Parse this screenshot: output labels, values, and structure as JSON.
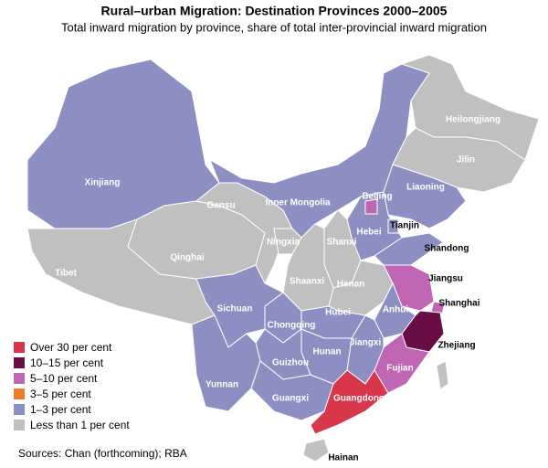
{
  "title": "Rural–urban Migration: Destination Provinces 2000–2005",
  "subtitle": "Total inward migration by province, share of total inter-provincial inward migration",
  "legend": [
    {
      "label": "Over 30 per cent",
      "color": "#d8374b"
    },
    {
      "label": "10–15 per cent",
      "color": "#6b0d45"
    },
    {
      "label": "5–10 per cent",
      "color": "#c064b4"
    },
    {
      "label": "3–5 per cent",
      "color": "#ee7c2b"
    },
    {
      "label": "1–3 per cent",
      "color": "#8d8fc2"
    },
    {
      "label": "Less than 1 per cent",
      "color": "#c0c0c0"
    }
  ],
  "provinces": [
    {
      "name": "Xinjiang",
      "color": "#8d8fc2"
    },
    {
      "name": "Tibet",
      "color": "#c0c0c0"
    },
    {
      "name": "Qinghai",
      "color": "#c0c0c0"
    },
    {
      "name": "Gansu",
      "color": "#c0c0c0"
    },
    {
      "name": "Inner Mongolia",
      "color": "#8d8fc2"
    },
    {
      "name": "Heilongjiang",
      "color": "#c0c0c0"
    },
    {
      "name": "Jilin",
      "color": "#c0c0c0"
    },
    {
      "name": "Liaoning",
      "color": "#8d8fc2"
    },
    {
      "name": "Beijing",
      "color": "#c064b4"
    },
    {
      "name": "Tianjin",
      "color": "#8d8fc2"
    },
    {
      "name": "Hebei",
      "color": "#8d8fc2"
    },
    {
      "name": "Shanxi",
      "color": "#c0c0c0"
    },
    {
      "name": "Ningxia",
      "color": "#c0c0c0"
    },
    {
      "name": "Shaanxi",
      "color": "#c0c0c0"
    },
    {
      "name": "Henan",
      "color": "#c0c0c0"
    },
    {
      "name": "Shandong",
      "color": "#8d8fc2"
    },
    {
      "name": "Jiangsu",
      "color": "#c064b4"
    },
    {
      "name": "Shanghai",
      "color": "#c064b4"
    },
    {
      "name": "Anhui",
      "color": "#8d8fc2"
    },
    {
      "name": "Zhejiang",
      "color": "#6b0d45"
    },
    {
      "name": "Fujian",
      "color": "#c064b4"
    },
    {
      "name": "Jiangxi",
      "color": "#8d8fc2"
    },
    {
      "name": "Hubei",
      "color": "#8d8fc2"
    },
    {
      "name": "Chongqing",
      "color": "#8d8fc2"
    },
    {
      "name": "Sichuan",
      "color": "#8d8fc2"
    },
    {
      "name": "Hunan",
      "color": "#8d8fc2"
    },
    {
      "name": "Guizhou",
      "color": "#8d8fc2"
    },
    {
      "name": "Yunnan",
      "color": "#8d8fc2"
    },
    {
      "name": "Guangxi",
      "color": "#8d8fc2"
    },
    {
      "name": "Guangdong",
      "color": "#d8374b"
    },
    {
      "name": "Hainan",
      "color": "#c0c0c0"
    }
  ],
  "source": "Sources: Chan (forthcoming); RBA"
}
